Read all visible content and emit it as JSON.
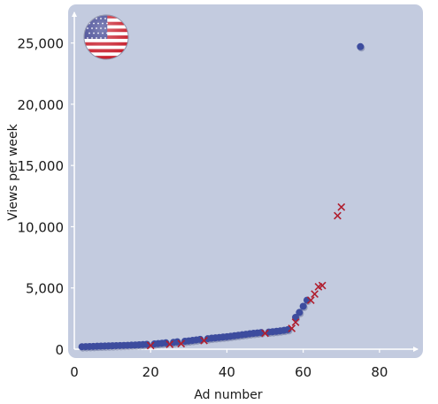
{
  "chart_data": {
    "type": "scatter",
    "title": "",
    "xlabel": "Ad number",
    "ylabel": "Views per week",
    "xlim": [
      0,
      90
    ],
    "ylim": [
      0,
      27500
    ],
    "x_ticks": [
      0,
      20,
      40,
      60,
      80
    ],
    "x_tick_labels": [
      "0",
      "20",
      "40",
      "60",
      "80"
    ],
    "y_ticks": [
      0,
      5000,
      10000,
      15000,
      20000,
      25000
    ],
    "y_tick_labels": [
      "0",
      "5,000",
      "10,000",
      "15,000",
      "20,000",
      "25,000"
    ],
    "grid": false,
    "legend": "none",
    "flag_icon": "us-flag-icon",
    "colors": {
      "panel": "#c3cbdf",
      "dot": "#3d4c9e",
      "cross": "#b01e2e",
      "axis": "#ffffff"
    },
    "series": [
      {
        "marker": "dot",
        "x": [
          2,
          3,
          4,
          5,
          6,
          7,
          8,
          9,
          10,
          11,
          12,
          13,
          14,
          15,
          16,
          17,
          18,
          19,
          21,
          22,
          23,
          24,
          26,
          27,
          29,
          30,
          31,
          32,
          33,
          35,
          36,
          37,
          38,
          39,
          40,
          41,
          42,
          43,
          44,
          45,
          46,
          47,
          48,
          49,
          51,
          52,
          53,
          54,
          55,
          56,
          58,
          59,
          60,
          61,
          75
        ],
        "y": [
          200,
          210,
          220,
          230,
          240,
          250,
          260,
          270,
          280,
          290,
          300,
          310,
          320,
          330,
          340,
          360,
          380,
          400,
          430,
          460,
          490,
          520,
          560,
          600,
          650,
          680,
          720,
          760,
          800,
          860,
          900,
          930,
          960,
          990,
          1020,
          1060,
          1100,
          1140,
          1180,
          1220,
          1260,
          1300,
          1330,
          1360,
          1400,
          1430,
          1460,
          1500,
          1540,
          1600,
          2600,
          3000,
          3500,
          4000,
          24700
        ]
      },
      {
        "marker": "cross",
        "x": [
          20,
          25,
          28,
          34,
          50,
          57,
          58,
          62,
          63,
          64,
          65,
          69,
          70
        ],
        "y": [
          300,
          400,
          450,
          700,
          1300,
          1700,
          2200,
          4000,
          4500,
          5100,
          5200,
          10900,
          11600
        ]
      }
    ]
  }
}
